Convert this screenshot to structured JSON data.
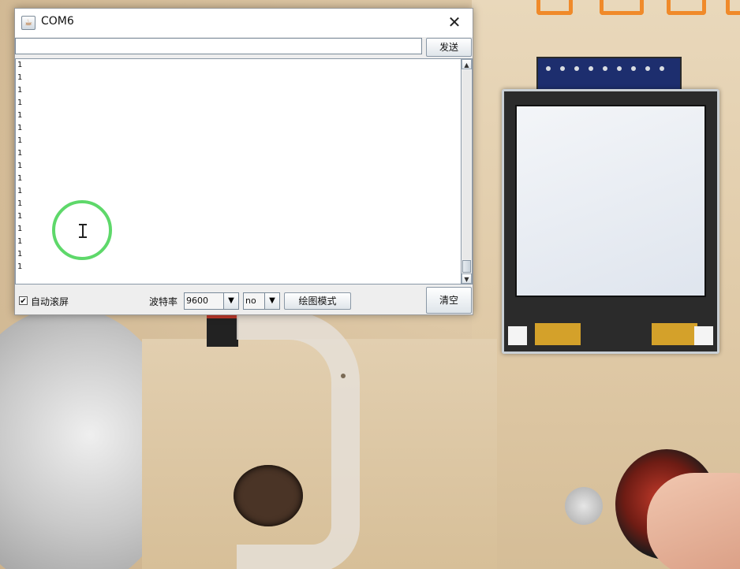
{
  "window": {
    "title": "COM6",
    "close_glyph": "✕",
    "icon": "java-cup-icon"
  },
  "send": {
    "input_value": "",
    "button_label": "发送"
  },
  "output": {
    "lines": [
      "1",
      "1",
      "1",
      "1",
      "1",
      "1",
      "1",
      "1",
      "1",
      "1",
      "1",
      "1",
      "1",
      "1",
      "1",
      "1",
      "1"
    ]
  },
  "footer": {
    "autoscroll_label": "自动滚屏",
    "autoscroll_checked": true,
    "baud_label": "波特率",
    "baud_value": "9600",
    "line_ending_value": "no",
    "plot_button_label": "绘图模式",
    "clear_button_label": "清空"
  },
  "colors": {
    "click_ring": "#5ed86a",
    "logo_orange": "#f08a2a"
  }
}
